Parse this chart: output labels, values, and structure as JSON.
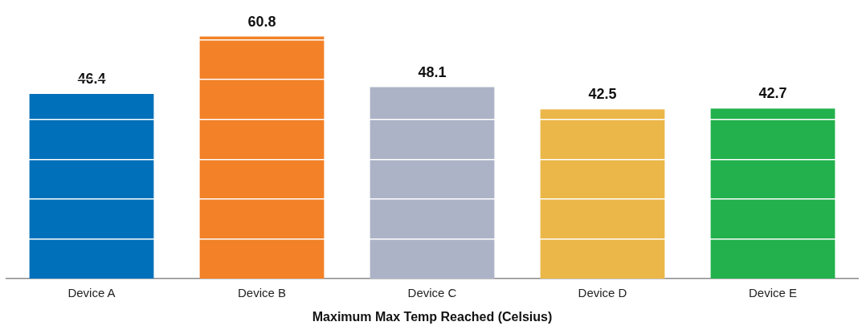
{
  "chart_data": {
    "type": "bar",
    "categories": [
      "Device A",
      "Device B",
      "Device C",
      "Device D",
      "Device E"
    ],
    "values": [
      46.4,
      60.8,
      48.1,
      42.5,
      42.7
    ],
    "colors": [
      "#0070ba",
      "#f28127",
      "#adb3c7",
      "#ebb748",
      "#22b14c"
    ],
    "xlabel": "Maximum Max Temp Reached (Celsius)",
    "yticks": [
      {
        "value": 10,
        "label": null
      },
      {
        "value": 20,
        "label": null
      },
      {
        "value": 30,
        "label": null
      },
      {
        "value": 40,
        "label": null
      },
      {
        "value": 50,
        "label": null
      },
      {
        "value": 60,
        "label": null
      }
    ],
    "grid": "y",
    "tick_labels": "x",
    "data_labels": true
  }
}
